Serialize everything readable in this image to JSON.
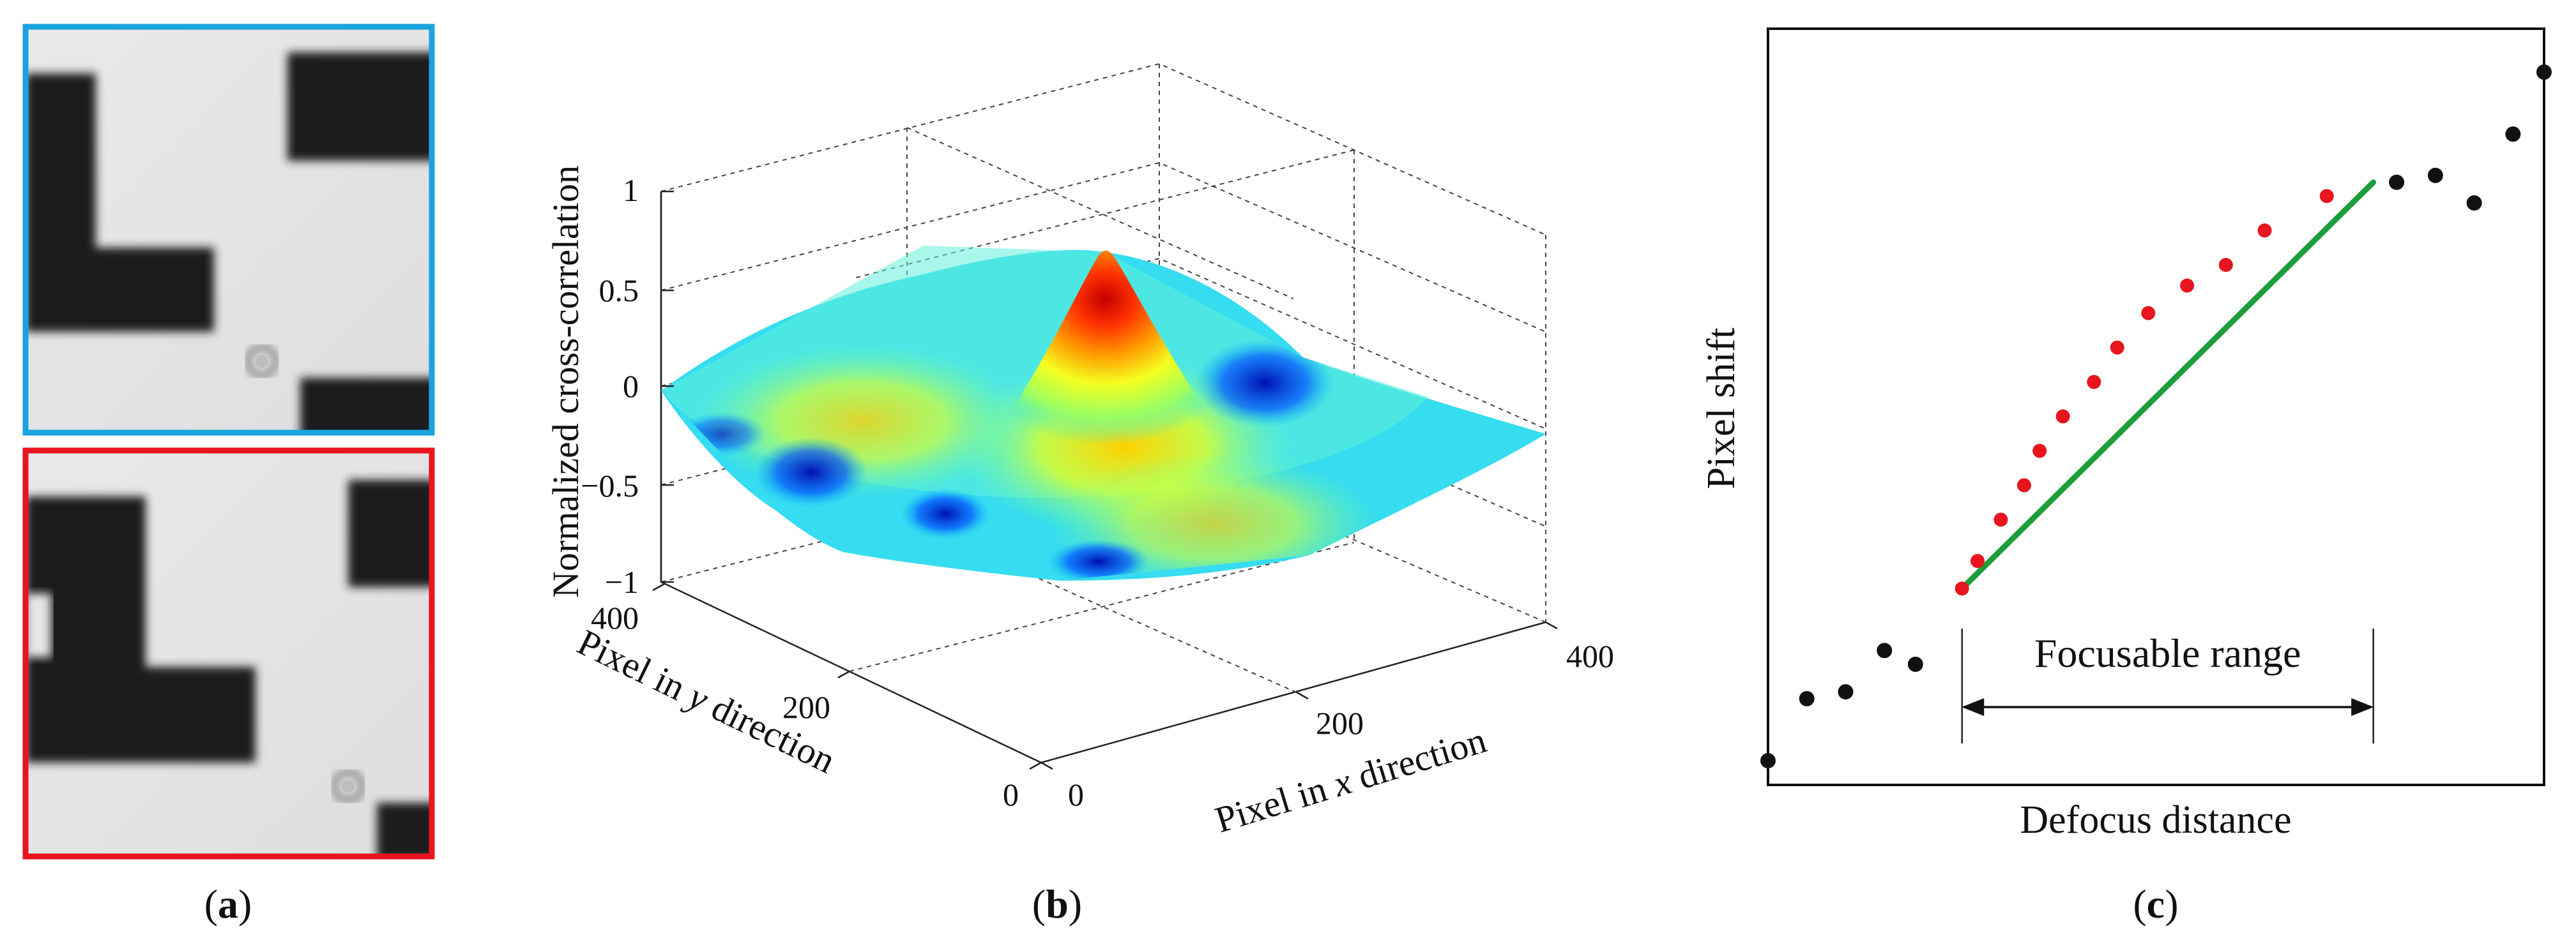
{
  "figure": {
    "panels": [
      {
        "id": "a",
        "caption": "(a)",
        "caption_letter": "a",
        "frame_colors": [
          "#1aa3e0",
          "#e8141e"
        ]
      },
      {
        "id": "b",
        "caption": "(b)",
        "caption_letter": "b"
      },
      {
        "id": "c",
        "caption": "(c)",
        "caption_letter": "c"
      }
    ]
  },
  "chart_data": [
    {
      "type": "surface",
      "title": "",
      "zlabel": "Normalized cross-correlation",
      "ylabel_parts": [
        "Pixel in ",
        "y",
        " direction"
      ],
      "xlabel_parts": [
        "Pixel in ",
        "x",
        " direction"
      ],
      "z_ticks": [
        "1",
        "0.5",
        "0",
        "−0.5",
        "−1"
      ],
      "z_tick_values": [
        1,
        0.5,
        0,
        -0.5,
        -1
      ],
      "y_ticks": [
        "400",
        "200",
        "0"
      ],
      "x_ticks": [
        "0",
        "200",
        "400"
      ],
      "xlim": [
        0,
        400
      ],
      "ylim": [
        0,
        400
      ],
      "zlim": [
        -1,
        1
      ],
      "peak": {
        "x": 200,
        "y": 200,
        "z": 0.68
      },
      "colormap": "jet",
      "grid": true
    },
    {
      "type": "scatter",
      "xlabel": "Defocus distance",
      "ylabel": "Pixel shift",
      "annotation": "Focusable range",
      "colors": {
        "outside": "#111111",
        "inside": "#e8141e",
        "fit_line": "#1e9e3a"
      },
      "points_outside": [
        [
          0.0,
          0.0
        ],
        [
          0.05,
          0.09
        ],
        [
          0.1,
          0.1
        ],
        [
          0.15,
          0.16
        ],
        [
          0.19,
          0.14
        ],
        [
          0.81,
          0.84
        ],
        [
          0.86,
          0.85
        ],
        [
          0.91,
          0.81
        ],
        [
          0.96,
          0.91
        ],
        [
          1.0,
          1.0
        ]
      ],
      "points_in_range": [
        [
          0.25,
          0.25
        ],
        [
          0.27,
          0.29
        ],
        [
          0.3,
          0.35
        ],
        [
          0.33,
          0.4
        ],
        [
          0.35,
          0.45
        ],
        [
          0.38,
          0.5
        ],
        [
          0.42,
          0.55
        ],
        [
          0.45,
          0.6
        ],
        [
          0.49,
          0.65
        ],
        [
          0.54,
          0.69
        ],
        [
          0.59,
          0.72
        ],
        [
          0.64,
          0.77
        ],
        [
          0.72,
          0.82
        ]
      ],
      "fit_line": [
        [
          0.25,
          0.25
        ],
        [
          0.78,
          0.84
        ]
      ],
      "focusable_range": [
        0.25,
        0.78
      ]
    }
  ]
}
